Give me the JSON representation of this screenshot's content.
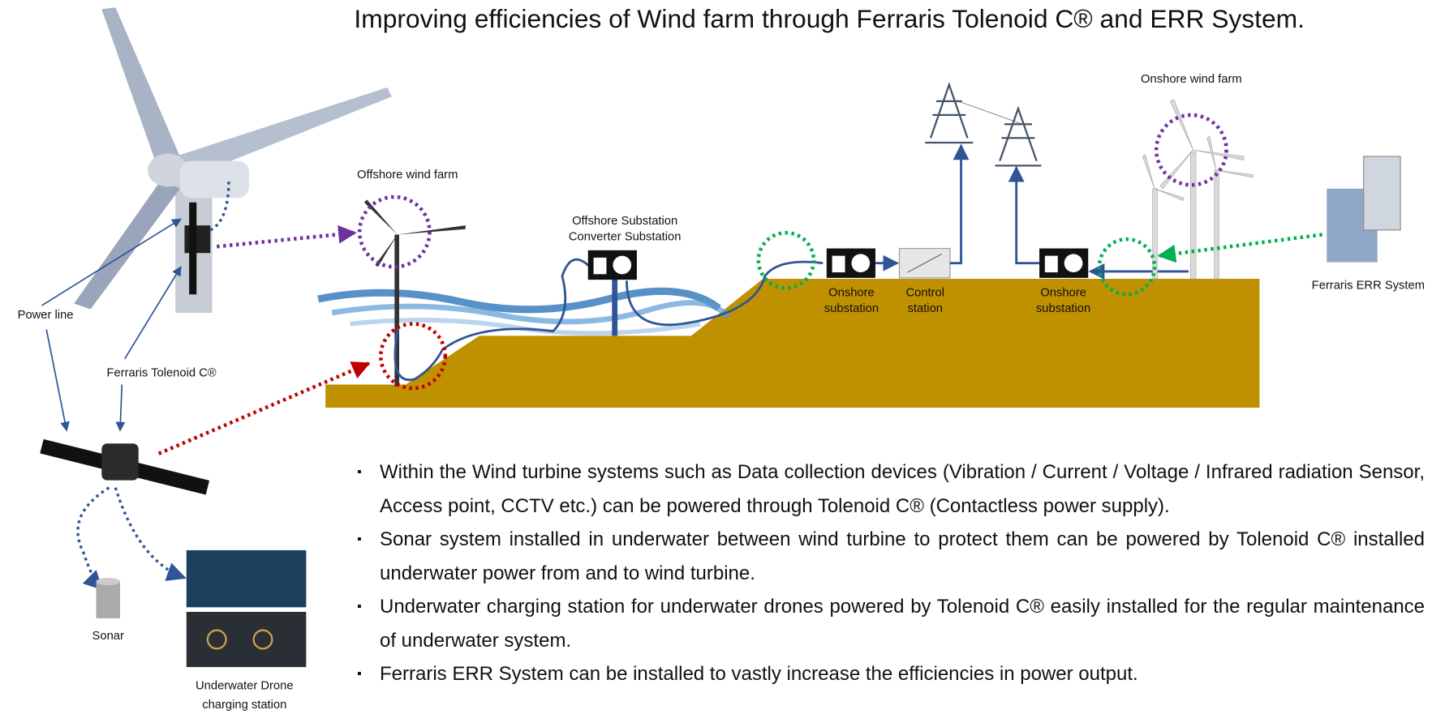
{
  "title": "Improving efficiencies of Wind farm through Ferraris Tolenoid C® and ERR System.",
  "labels": {
    "offshore_wind_farm": "Offshore wind  farm",
    "offshore_substation": [
      "Offshore Substation",
      "Converter Substation"
    ],
    "onshore_wind_farm": "Onshore wind  farm",
    "onshore_substation_1": [
      "Onshore",
      "substation"
    ],
    "control_station": [
      "Control",
      "station"
    ],
    "onshore_substation_2": [
      "Onshore",
      "substation"
    ],
    "err_system": "Ferraris ERR System",
    "power_line": "Power line",
    "tolenoid": "Ferraris Tolenoid C®",
    "sonar": "Sonar",
    "drone_station": [
      "Underwater Drone",
      "charging station"
    ]
  },
  "bullets": [
    "Within the Wind turbine systems such as Data collection devices (Vibration / Current / Voltage / Infrared radiation Sensor, Access point, CCTV etc.) can be powered through Tolenoid C® (Contactless power supply).",
    "Sonar system installed in underwater between wind turbine to protect them can be powered by Tolenoid C® installed underwater power from and to wind turbine.",
    "Underwater charging station for underwater drones  powered by Tolenoid C® easily installed for the regular maintenance of underwater system.",
    "Ferraris ERR System can be installed to vastly increase the efficiencies in power output."
  ]
}
